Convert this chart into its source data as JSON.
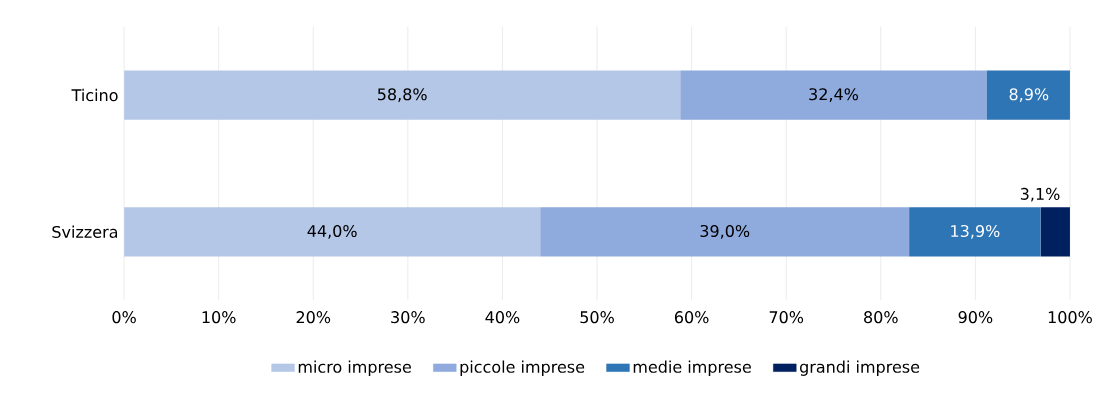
{
  "chart_data": {
    "type": "bar",
    "orientation": "horizontal",
    "stacked": true,
    "categories": [
      "Ticino",
      "Svizzera"
    ],
    "series": [
      {
        "name": "micro imprese",
        "color": "#b4c7e7",
        "values": [
          58.8,
          44.0
        ],
        "value_labels": [
          "58,8%",
          "44,0%"
        ]
      },
      {
        "name": "piccole imprese",
        "color": "#8faadc",
        "values": [
          32.4,
          39.0
        ],
        "value_labels": [
          "32,4%",
          "39,0%"
        ]
      },
      {
        "name": "medie imprese",
        "color": "#2e75b6",
        "values": [
          8.9,
          13.9
        ],
        "value_labels": [
          "8,9%",
          "13,9%"
        ]
      },
      {
        "name": "grandi imprese",
        "color": "#002060",
        "values": [
          null,
          3.1
        ],
        "value_labels": [
          null,
          "3,1%"
        ]
      }
    ],
    "xlim": [
      0,
      100
    ],
    "xticks": [
      {
        "value": 0,
        "label": "0%"
      },
      {
        "value": 10,
        "label": "10%"
      },
      {
        "value": 20,
        "label": "20%"
      },
      {
        "value": 30,
        "label": "30%"
      },
      {
        "value": 40,
        "label": "40%"
      },
      {
        "value": 50,
        "label": "50%"
      },
      {
        "value": 60,
        "label": "60%"
      },
      {
        "value": 70,
        "label": "70%"
      },
      {
        "value": 80,
        "label": "80%"
      },
      {
        "value": 90,
        "label": "90%"
      },
      {
        "value": 100,
        "label": "100%"
      }
    ],
    "grid": "x",
    "legend": "bottom"
  }
}
